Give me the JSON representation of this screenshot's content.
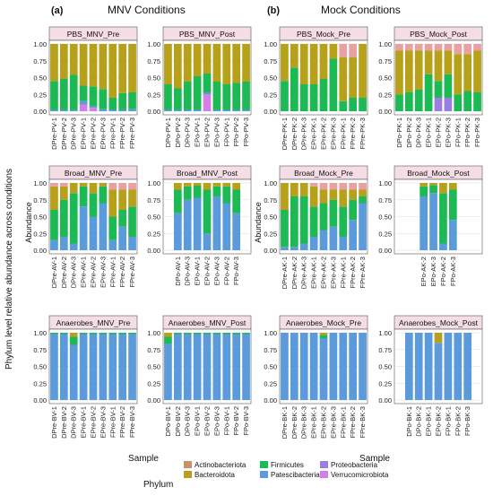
{
  "figure": {
    "panel_a_label": "(a)",
    "panel_a_title": "MNV Conditions",
    "panel_b_label": "(b)",
    "panel_b_title": "Mock Conditions",
    "y_axis_title": "Phylum level relative abundance across conditions",
    "inner_y_label": "Abundance",
    "x_label_left": "Sample",
    "x_label_right": "Sample"
  },
  "legend": {
    "title": "Phylum",
    "items": [
      {
        "label": "Actinobacteriota",
        "color": "#c8916a"
      },
      {
        "label": "Bacteroidota",
        "color": "#b8a11a"
      },
      {
        "label": "Firmicutes",
        "color": "#1db954"
      },
      {
        "label": "Patescibacteria",
        "color": "#5b9bdc"
      },
      {
        "label": "Proteobacteria",
        "color": "#9a7fe0"
      },
      {
        "label": "Verrucomicrobiota",
        "color": "#d67ee8"
      }
    ]
  },
  "colors": {
    "Actinobacteriota": "#c8916a",
    "Bacteroidota": "#b8a11a",
    "Firmicutes": "#1db954",
    "Patescibacteria": "#5b9bdc",
    "Proteobacteria": "#9a7fe0",
    "Verrucomicrobiota": "#d67ee8",
    "Pink": "#e9a0a0",
    "Strip": "#f5dde6"
  },
  "chart_data": [
    {
      "type": "bar",
      "title": "PBS_MNV_Pre",
      "ylim": [
        0,
        1
      ],
      "y_ticks": [
        "0.00",
        "0.25",
        "0.50",
        "0.75",
        "1.00"
      ],
      "categories": [
        "DPre-PV-1",
        "DPre-PV-2",
        "DPre-PV-3",
        "EPre-PV-1",
        "EPre-PV-2",
        "EPre-PV-3",
        "FPre-PV-1",
        "FPre-PV-2",
        "FPre-PV-3"
      ],
      "series": [
        {
          "name": "Verrucomicrobiota",
          "values": [
            0.0,
            0.0,
            0.0,
            0.1,
            0.05,
            0.0,
            0.0,
            0.0,
            0.0
          ]
        },
        {
          "name": "Patescibacteria",
          "values": [
            0.02,
            0.02,
            0.02,
            0.05,
            0.02,
            0.03,
            0.02,
            0.02,
            0.03
          ]
        },
        {
          "name": "Firmicutes",
          "values": [
            0.43,
            0.46,
            0.52,
            0.23,
            0.3,
            0.3,
            0.18,
            0.25,
            0.25
          ]
        },
        {
          "name": "Bacteroidota",
          "values": [
            0.55,
            0.52,
            0.46,
            0.62,
            0.63,
            0.67,
            0.8,
            0.73,
            0.72
          ]
        }
      ]
    },
    {
      "type": "bar",
      "title": "PBS_MNV_Post",
      "ylim": [
        0,
        1
      ],
      "y_ticks": [
        "0.00",
        "0.25",
        "0.50",
        "0.75",
        "1.00"
      ],
      "categories": [
        "DPo-PV-1",
        "DPo-PV-2",
        "DPo-PV-3",
        "EPo-PV-1",
        "EPo-PV-2",
        "EPo-PV-3",
        "FPo-PV-1",
        "FPo-PV-2",
        "FPo-PV-3"
      ],
      "series": [
        {
          "name": "Verrucomicrobiota",
          "values": [
            0.0,
            0.0,
            0.0,
            0.0,
            0.25,
            0.0,
            0.0,
            0.0,
            0.0
          ]
        },
        {
          "name": "Patescibacteria",
          "values": [
            0.02,
            0.02,
            0.02,
            0.02,
            0.03,
            0.02,
            0.02,
            0.02,
            0.02
          ]
        },
        {
          "name": "Firmicutes",
          "values": [
            0.38,
            0.32,
            0.42,
            0.5,
            0.28,
            0.42,
            0.38,
            0.4,
            0.42
          ]
        },
        {
          "name": "Bacteroidota",
          "values": [
            0.6,
            0.66,
            0.56,
            0.48,
            0.44,
            0.56,
            0.6,
            0.58,
            0.56
          ]
        }
      ]
    },
    {
      "type": "bar",
      "title": "PBS_Mock_Pre",
      "ylim": [
        0,
        1
      ],
      "y_ticks": [
        "0.00",
        "0.25",
        "0.50",
        "0.75",
        "1.00"
      ],
      "categories": [
        "DPre-PK-1",
        "DPre-PK-2",
        "DPre-PK-3",
        "EPre-PK-1",
        "EPre-PK-2",
        "EPre-PK-3",
        "FPre-PK-1",
        "FPre-PK-2",
        "FPre-PK-3"
      ],
      "series": [
        {
          "name": "Patescibacteria",
          "values": [
            0.0,
            0.0,
            0.0,
            0.0,
            0.0,
            0.0,
            0.0,
            0.0,
            0.0
          ]
        },
        {
          "name": "Firmicutes",
          "values": [
            0.45,
            0.65,
            0.4,
            0.4,
            0.48,
            0.78,
            0.15,
            0.2,
            0.2
          ]
        },
        {
          "name": "Bacteroidota",
          "values": [
            0.55,
            0.35,
            0.6,
            0.6,
            0.52,
            0.22,
            0.65,
            0.6,
            0.8
          ]
        },
        {
          "name": "Pink",
          "values": [
            0.0,
            0.0,
            0.0,
            0.0,
            0.0,
            0.0,
            0.2,
            0.2,
            0.0
          ]
        }
      ]
    },
    {
      "type": "bar",
      "title": "PBS_Mock_Post",
      "ylim": [
        0,
        1
      ],
      "y_ticks": [
        "0.00",
        "0.25",
        "0.50",
        "0.75",
        "1.00"
      ],
      "categories": [
        "DPo-PK-1",
        "DPo-PK-2",
        "DPo-PK-3",
        "EPo-PK-1",
        "EPo-PK-2",
        "EPo-PK-3",
        "FPo-PK-1",
        "FPo-PK-2",
        "FPo-PK-3"
      ],
      "series": [
        {
          "name": "Proteobacteria",
          "values": [
            0.0,
            0.0,
            0.0,
            0.0,
            0.2,
            0.2,
            0.0,
            0.0,
            0.0
          ]
        },
        {
          "name": "Firmicutes",
          "values": [
            0.25,
            0.28,
            0.32,
            0.55,
            0.25,
            0.35,
            0.25,
            0.3,
            0.28
          ]
        },
        {
          "name": "Bacteroidota",
          "values": [
            0.65,
            0.62,
            0.58,
            0.35,
            0.45,
            0.35,
            0.6,
            0.55,
            0.62
          ]
        },
        {
          "name": "Pink",
          "values": [
            0.1,
            0.1,
            0.1,
            0.1,
            0.1,
            0.1,
            0.15,
            0.15,
            0.1
          ]
        }
      ]
    },
    {
      "type": "bar",
      "title": "Broad_MNV_Pre",
      "ylim": [
        0,
        1
      ],
      "y_ticks": [
        "0.00",
        "0.25",
        "0.50",
        "0.75",
        "1.00"
      ],
      "categories": [
        "DPre-AV-1",
        "DPre-AV-2",
        "DPre-AV-3",
        "EPre-AV-1",
        "EPre-AV-2",
        "EPre-AV-3",
        "FPre-AV-1",
        "FPre-AV-2",
        "FPre-AV-3"
      ],
      "series": [
        {
          "name": "Patescibacteria",
          "values": [
            0.15,
            0.2,
            0.1,
            0.65,
            0.5,
            0.7,
            0.15,
            0.35,
            0.2
          ]
        },
        {
          "name": "Firmicutes",
          "values": [
            0.45,
            0.55,
            0.75,
            0.3,
            0.35,
            0.25,
            0.35,
            0.25,
            0.45
          ]
        },
        {
          "name": "Bacteroidota",
          "values": [
            0.35,
            0.2,
            0.15,
            0.05,
            0.15,
            0.05,
            0.4,
            0.3,
            0.25
          ]
        },
        {
          "name": "Pink",
          "values": [
            0.05,
            0.05,
            0.0,
            0.0,
            0.0,
            0.0,
            0.1,
            0.1,
            0.1
          ]
        }
      ]
    },
    {
      "type": "bar",
      "title": "Broad_MNV_Post",
      "ylim": [
        0,
        1
      ],
      "y_ticks": [
        "0.00",
        "0.25",
        "0.50",
        "0.75",
        "1.00"
      ],
      "categories": [
        "DPo-AV-1",
        "DPo-AV-3",
        "EPo-AV-1",
        "EPo-AV-2",
        "EPo-AV-3",
        "FPo-AV-2",
        "FPo-AV-3"
      ],
      "series": [
        {
          "name": "Patescibacteria",
          "values": [
            0.55,
            0.75,
            0.78,
            0.25,
            0.8,
            0.7,
            0.55
          ]
        },
        {
          "name": "Firmicutes",
          "values": [
            0.35,
            0.2,
            0.18,
            0.65,
            0.15,
            0.25,
            0.35
          ]
        },
        {
          "name": "Bacteroidota",
          "values": [
            0.1,
            0.05,
            0.04,
            0.1,
            0.05,
            0.05,
            0.1
          ]
        }
      ]
    },
    {
      "type": "bar",
      "title": "Broad_Mock_Pre",
      "ylim": [
        0,
        1
      ],
      "y_ticks": [
        "0.00",
        "0.25",
        "0.50",
        "0.75",
        "1.00"
      ],
      "categories": [
        "DPre-AK-1",
        "DPre-AK-2",
        "DPre-AK-3",
        "EPre-AK-1",
        "EPre-AK-2",
        "EPre-AK-3",
        "FPre-AK-1",
        "FPre-AK-2",
        "FPre-AK-3"
      ],
      "series": [
        {
          "name": "Patescibacteria",
          "values": [
            0.05,
            0.05,
            0.1,
            0.2,
            0.3,
            0.35,
            0.2,
            0.45,
            0.7
          ]
        },
        {
          "name": "Firmicutes",
          "values": [
            0.55,
            0.75,
            0.7,
            0.45,
            0.4,
            0.4,
            0.45,
            0.3,
            0.1
          ]
        },
        {
          "name": "Bacteroidota",
          "values": [
            0.4,
            0.2,
            0.2,
            0.3,
            0.2,
            0.15,
            0.25,
            0.15,
            0.1
          ]
        },
        {
          "name": "Pink",
          "values": [
            0.0,
            0.0,
            0.0,
            0.05,
            0.1,
            0.1,
            0.1,
            0.1,
            0.1
          ]
        }
      ]
    },
    {
      "type": "bar",
      "title": "Broad_Mock_Post",
      "ylim": [
        0,
        1
      ],
      "y_ticks": [
        "0.00",
        "0.25",
        "0.50",
        "0.75",
        "1.00"
      ],
      "categories": [
        "EPo-AK-2",
        "EPo-AK-3",
        "FPo-AK-2",
        "FPo-AK-3"
      ],
      "series": [
        {
          "name": "Patescibacteria",
          "values": [
            0.8,
            0.85,
            0.1,
            0.45
          ]
        },
        {
          "name": "Firmicutes",
          "values": [
            0.15,
            0.12,
            0.75,
            0.45
          ]
        },
        {
          "name": "Bacteroidota",
          "values": [
            0.05,
            0.03,
            0.15,
            0.1
          ]
        }
      ]
    },
    {
      "type": "bar",
      "title": "Anaerobes_MNV_Pre",
      "ylim": [
        0,
        1
      ],
      "y_ticks": [
        "0.00",
        "0.25",
        "0.50",
        "0.75",
        "1.00"
      ],
      "categories": [
        "DPre-BV-1",
        "DPre-BV-2",
        "DPre-BV-3",
        "EPre-BV-1",
        "EPre-BV-2",
        "EPre-BV-3",
        "FPre-BV-1",
        "FPre-BV-2",
        "FPre-BV-3"
      ],
      "series": [
        {
          "name": "Patescibacteria",
          "values": [
            0.98,
            0.98,
            0.82,
            0.98,
            0.98,
            0.98,
            0.98,
            0.98,
            0.98
          ]
        },
        {
          "name": "Firmicutes",
          "values": [
            0.02,
            0.02,
            0.12,
            0.02,
            0.02,
            0.02,
            0.02,
            0.02,
            0.02
          ]
        },
        {
          "name": "Bacteroidota",
          "values": [
            0.0,
            0.0,
            0.06,
            0.0,
            0.0,
            0.0,
            0.0,
            0.0,
            0.0
          ]
        }
      ]
    },
    {
      "type": "bar",
      "title": "Anaerobes_MNV_Post",
      "ylim": [
        0,
        1
      ],
      "y_ticks": [
        "0.00",
        "0.25",
        "0.50",
        "0.75",
        "1.00"
      ],
      "categories": [
        "DPo-BV-1",
        "DPo-BV-2",
        "DPo-BV-3",
        "EPo-BV-1",
        "EPo-BV-2",
        "EPo-BV-3",
        "FPo-BV-1",
        "FPo-BV-2",
        "FPo-BV-3"
      ],
      "series": [
        {
          "name": "Patescibacteria",
          "values": [
            0.84,
            0.98,
            0.98,
            0.98,
            0.98,
            0.98,
            0.98,
            0.98,
            0.98
          ]
        },
        {
          "name": "Firmicutes",
          "values": [
            0.1,
            0.02,
            0.02,
            0.02,
            0.02,
            0.02,
            0.02,
            0.02,
            0.02
          ]
        },
        {
          "name": "Bacteroidota",
          "values": [
            0.06,
            0.0,
            0.0,
            0.0,
            0.0,
            0.0,
            0.0,
            0.0,
            0.0
          ]
        }
      ]
    },
    {
      "type": "bar",
      "title": "Anaerobes_Mock_Pre",
      "ylim": [
        0,
        1
      ],
      "y_ticks": [
        "0.00",
        "0.25",
        "0.50",
        "0.75",
        "1.00"
      ],
      "categories": [
        "DPre-BK-1",
        "DPre-BK-2",
        "DPre-BK-3",
        "EPre-BK-1",
        "EPre-BK-2",
        "EPre-BK-3",
        "FPre-BK-1",
        "FPre-BK-2",
        "FPre-BK-3"
      ],
      "series": [
        {
          "name": "Patescibacteria",
          "values": [
            1.0,
            1.0,
            1.0,
            1.0,
            0.92,
            1.0,
            1.0,
            1.0,
            1.0
          ]
        },
        {
          "name": "Firmicutes",
          "values": [
            0.0,
            0.0,
            0.0,
            0.0,
            0.05,
            0.0,
            0.0,
            0.0,
            0.0
          ]
        },
        {
          "name": "Bacteroidota",
          "values": [
            0.0,
            0.0,
            0.0,
            0.0,
            0.03,
            0.0,
            0.0,
            0.0,
            0.0
          ]
        }
      ]
    },
    {
      "type": "bar",
      "title": "Anaerobes_Mock_Post",
      "ylim": [
        0,
        1
      ],
      "y_ticks": [
        "0.00",
        "0.25",
        "0.50",
        "0.75",
        "1.00"
      ],
      "categories": [
        "DPo-BK-1",
        "DPo-BK-2",
        "EPo-BK-1",
        "EPo-BK-2",
        "FPo-BK-1",
        "FPo-BK-2",
        "FPo-BK-3"
      ],
      "series": [
        {
          "name": "Patescibacteria",
          "values": [
            1.0,
            1.0,
            1.0,
            0.85,
            1.0,
            1.0,
            1.0
          ]
        },
        {
          "name": "Bacteroidota",
          "values": [
            0.0,
            0.0,
            0.0,
            0.15,
            0.0,
            0.0,
            0.0
          ]
        }
      ]
    }
  ]
}
